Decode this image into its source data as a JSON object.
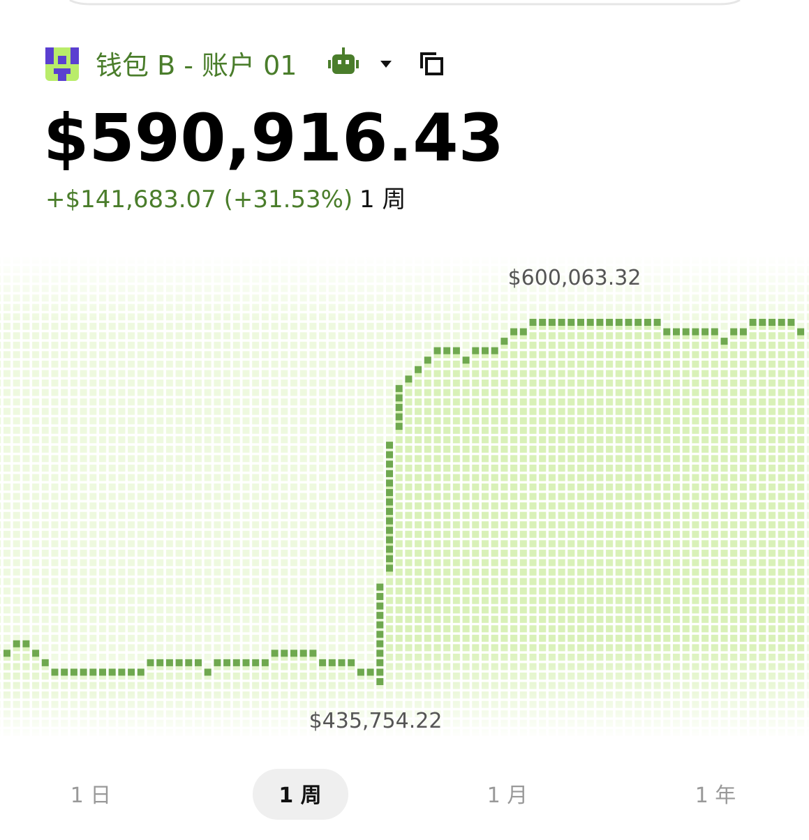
{
  "header": {
    "wallet_name": "钱包 B - 账户 01",
    "balance": "$590,916.43",
    "change": "+$141,683.07 (+31.53%)",
    "period": "1 周"
  },
  "chart_data": {
    "type": "line",
    "color": "#6fa84f",
    "values": [
      448500,
      453000,
      453000,
      448500,
      444400,
      439900,
      439900,
      439900,
      439900,
      439900,
      439900,
      439900,
      439900,
      439900,
      439900,
      444400,
      444400,
      444400,
      444400,
      444400,
      444400,
      439900,
      444400,
      444400,
      444400,
      444400,
      444400,
      444400,
      448500,
      448500,
      448500,
      448500,
      448500,
      444400,
      444400,
      444400,
      444400,
      439900,
      439900,
      435754.22,
      527300,
      570400,
      574900,
      579000,
      583500,
      587900,
      587900,
      587900,
      583500,
      587900,
      587900,
      587900,
      592100,
      596600,
      596600,
      600063.32,
      600063.32,
      600063.32,
      600063.32,
      600063.32,
      600063.32,
      600063.32,
      600063.32,
      600063.32,
      600063.32,
      600063.32,
      600063.32,
      600063.32,
      600063.32,
      596600,
      596600,
      596600,
      596600,
      596600,
      596600,
      592100,
      596600,
      596600,
      600063.32,
      600063.32,
      600063.32,
      600063.32,
      600063.32,
      596600
    ],
    "annotations": [
      {
        "value": 600063.32,
        "label": "$600,063.32"
      },
      {
        "value": 435754.22,
        "label": "$435,754.22"
      }
    ]
  },
  "tabs": [
    "1 日",
    "1 周",
    "1 月",
    "1 年"
  ]
}
